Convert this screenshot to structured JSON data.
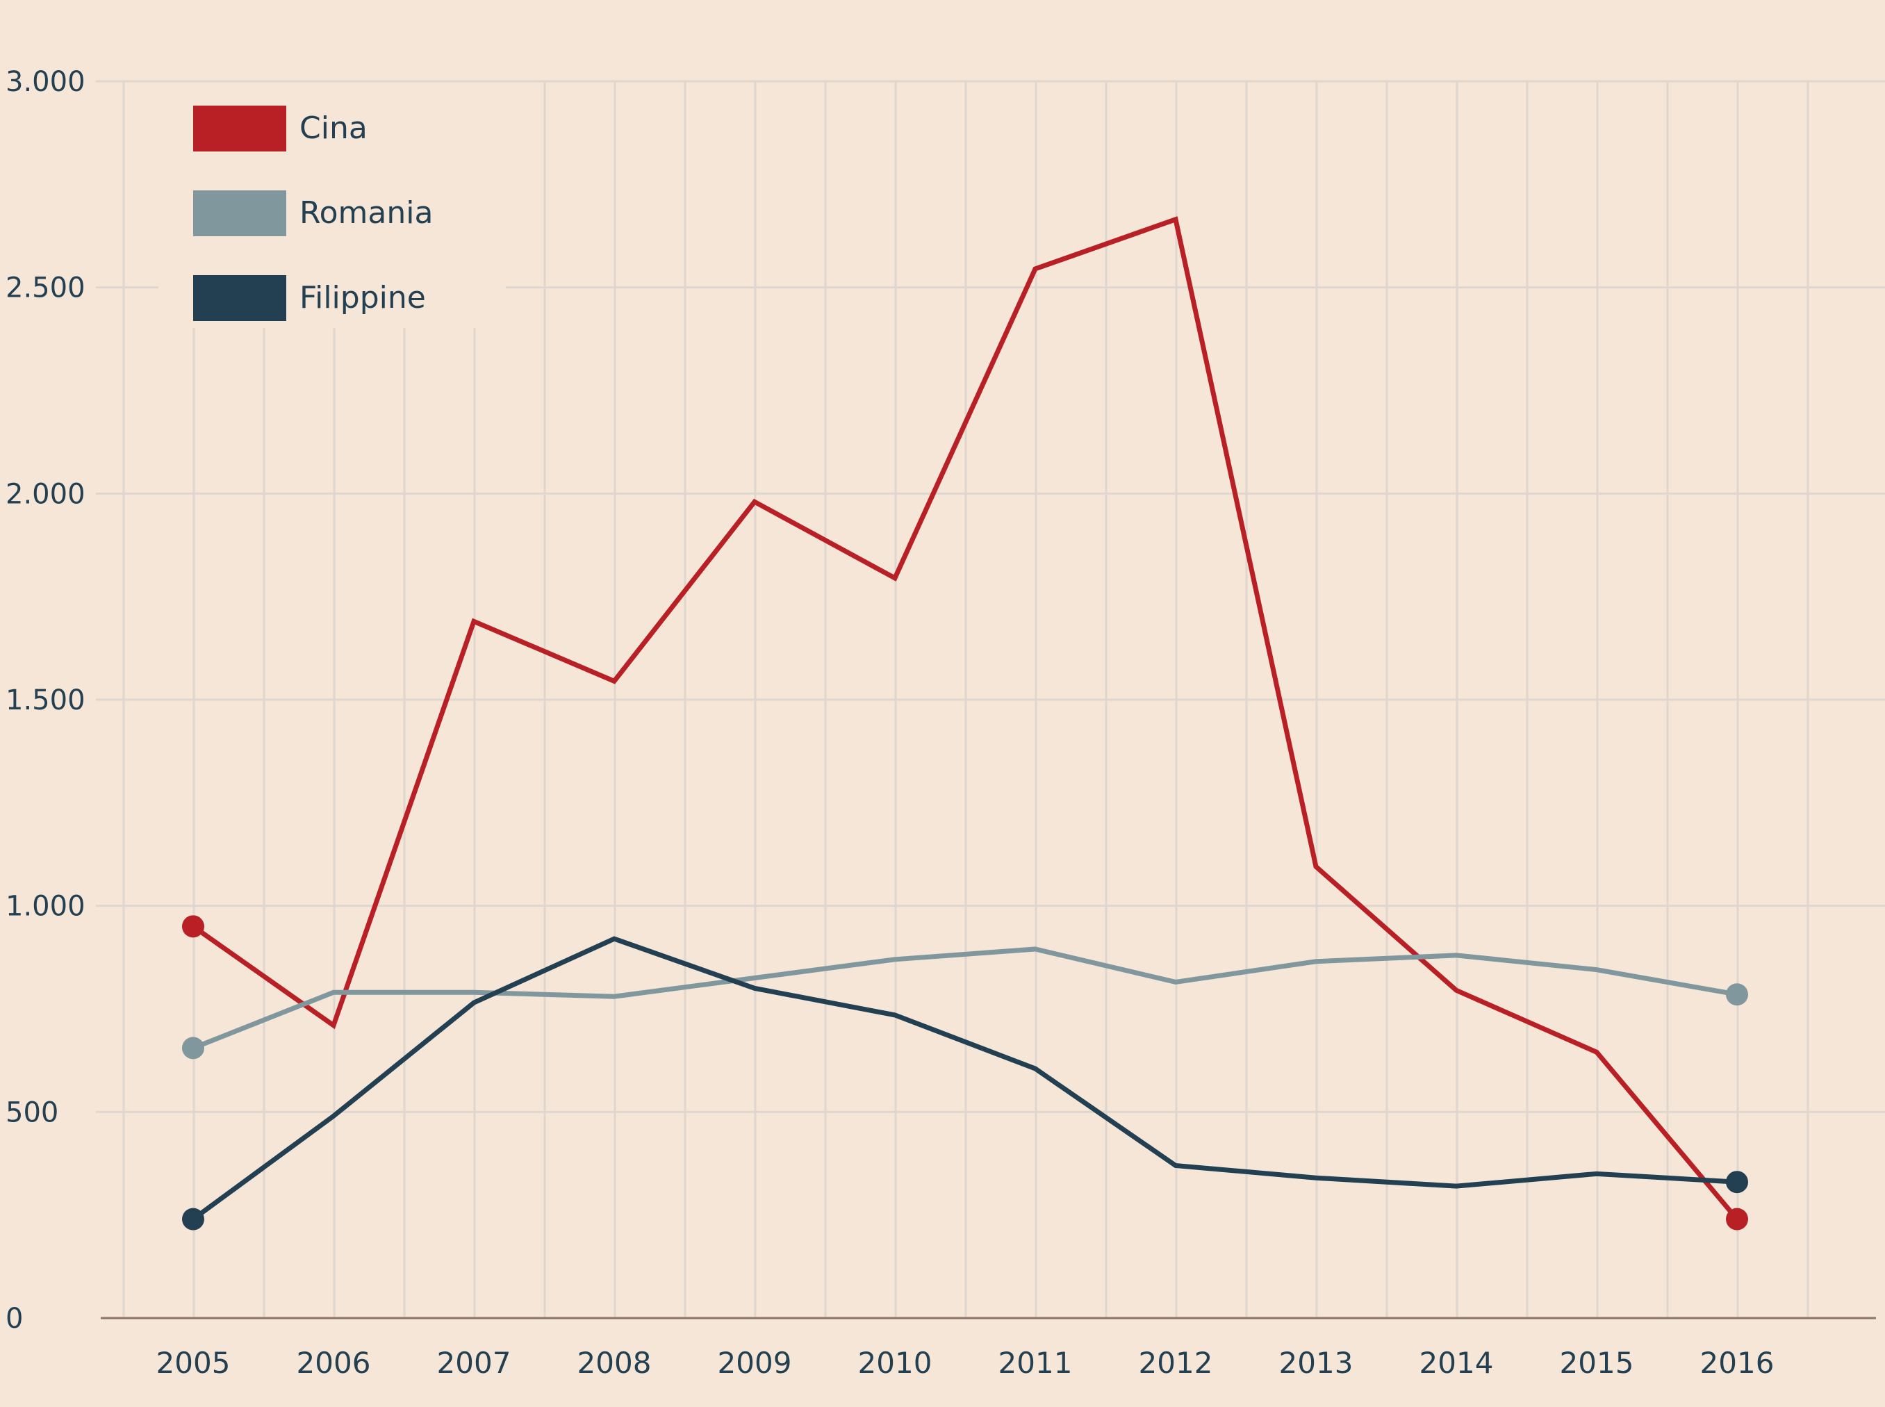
{
  "chart_data": {
    "type": "line",
    "title": "",
    "xlabel": "",
    "ylabel": "",
    "x": [
      2005,
      2006,
      2007,
      2008,
      2009,
      2010,
      2011,
      2012,
      2013,
      2014,
      2015,
      2016
    ],
    "x_tick_labels": [
      "2005",
      "2006",
      "2007",
      "2008",
      "2009",
      "2010",
      "2011",
      "2012",
      "2013",
      "2014",
      "2015",
      "2016"
    ],
    "ylim": [
      0,
      3000
    ],
    "y_ticks": [
      0,
      500,
      1000,
      1500,
      2000,
      2500,
      3000
    ],
    "y_tick_labels": [
      "0",
      "500",
      "1.000",
      "1.500",
      "2.000",
      "2.500",
      "3.000"
    ],
    "grid": true,
    "legend_position": "top-left",
    "series": [
      {
        "name": "Cina",
        "color": "#b82025",
        "values": [
          950,
          710,
          1690,
          1545,
          1980,
          1795,
          2545,
          2665,
          1095,
          795,
          645,
          240
        ]
      },
      {
        "name": "Romania",
        "color": "#81979e",
        "values": [
          655,
          790,
          790,
          780,
          825,
          870,
          895,
          815,
          865,
          880,
          845,
          785
        ]
      },
      {
        "name": "Filippine",
        "color": "#233f52",
        "values": [
          240,
          490,
          765,
          920,
          800,
          735,
          605,
          370,
          340,
          320,
          350,
          330
        ]
      }
    ]
  }
}
